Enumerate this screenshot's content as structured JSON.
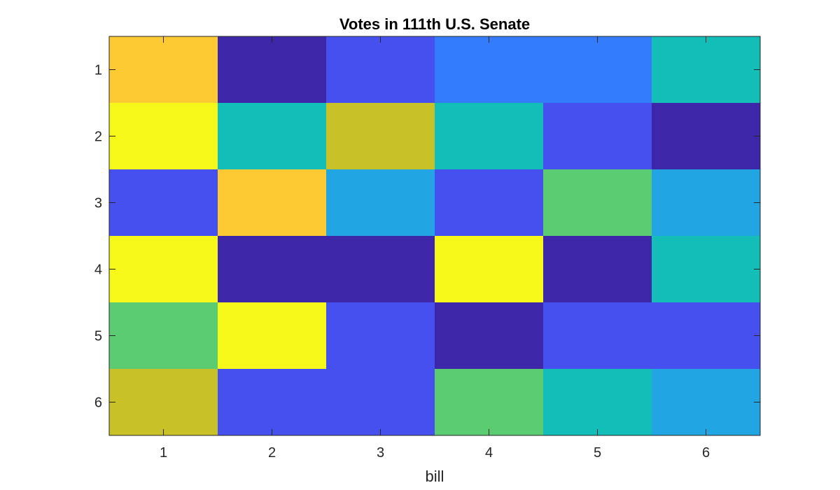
{
  "chart_data": {
    "type": "heatmap",
    "title": "Votes in 111th U.S. Senate",
    "xlabel": "bill",
    "ylabel": "",
    "x_categories": [
      "1",
      "2",
      "3",
      "4",
      "5",
      "6"
    ],
    "y_categories": [
      "1",
      "2",
      "3",
      "4",
      "5",
      "6"
    ],
    "colormap": "parula",
    "clim": [
      1,
      10
    ],
    "grid": false,
    "values": [
      [
        9,
        1,
        2,
        3,
        3,
        5
      ],
      [
        10,
        5,
        8,
        5,
        2,
        1
      ],
      [
        2,
        9,
        4,
        2,
        6,
        4
      ],
      [
        10,
        1,
        1,
        10,
        1,
        5
      ],
      [
        6,
        10,
        2,
        1,
        2,
        2
      ],
      [
        8,
        2,
        2,
        6,
        5,
        4
      ]
    ],
    "palette": {
      "1": "#3d26a8",
      "2": "#4650ee",
      "3": "#337dfc",
      "4": "#22a5e3",
      "5": "#14beb8",
      "6": "#5ccc73",
      "8": "#c9c128",
      "9": "#fdca33",
      "10": "#f6f819"
    },
    "axis_color": "#262626"
  }
}
